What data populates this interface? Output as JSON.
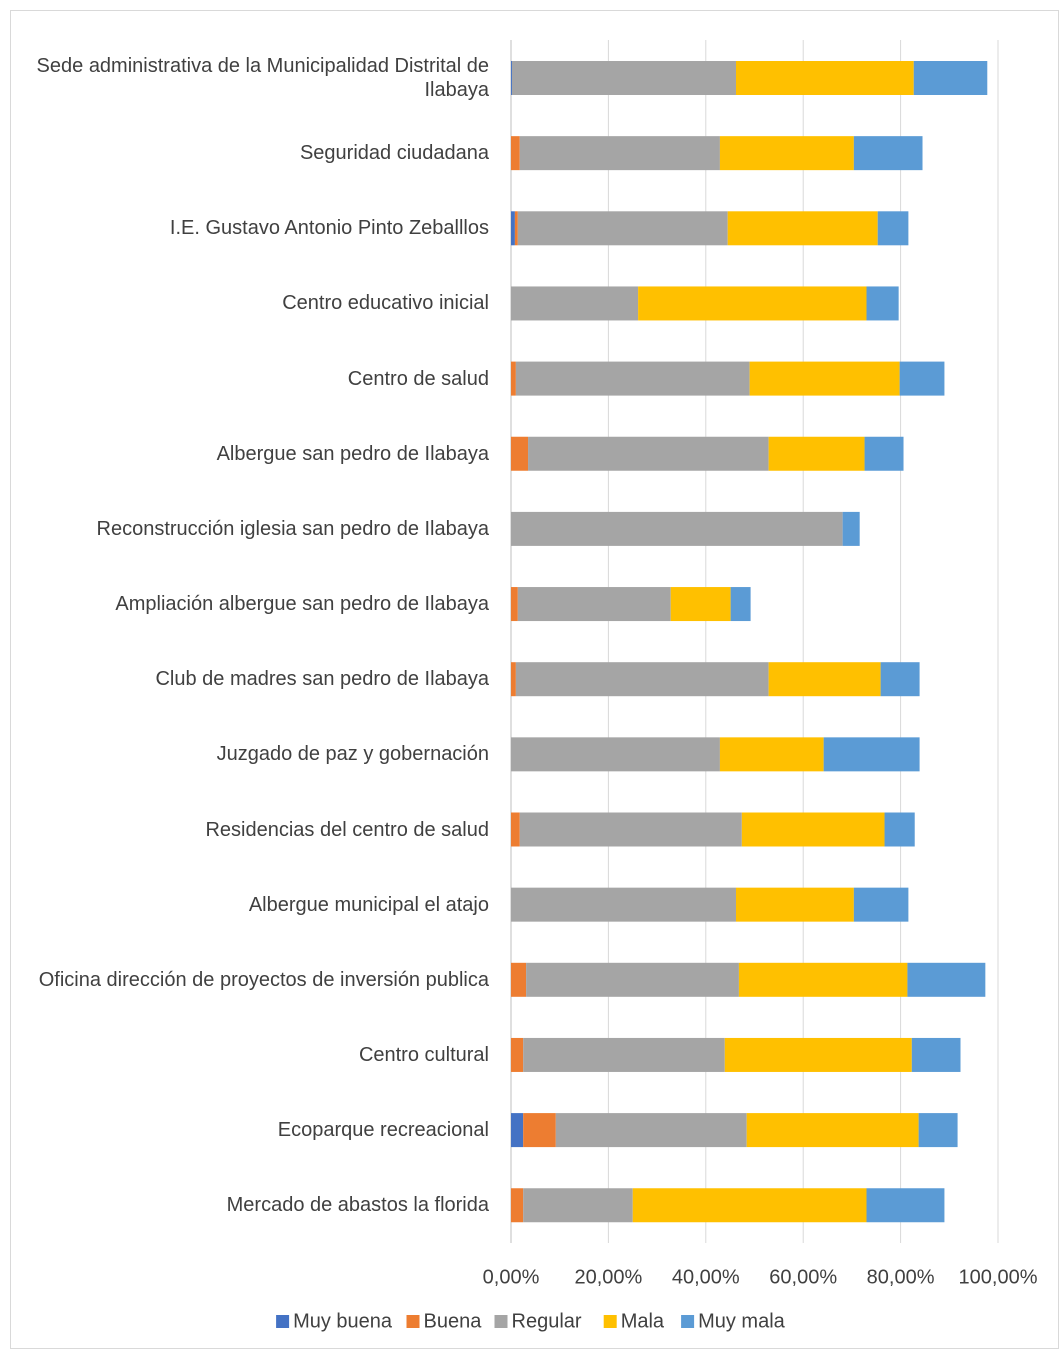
{
  "chart_data": {
    "type": "stacked-bar-horizontal",
    "categories": [
      "Sede administrativa de la Municipalidad Distrital de Ilabaya",
      "Seguridad ciudadana",
      "I.E. Gustavo Antonio Pinto Zeballlos",
      "Centro educativo inicial",
      "Centro de salud",
      "Albergue san pedro de Ilabaya",
      "Reconstrucción iglesia san pedro de Ilabaya",
      "Ampliación albergue san pedro de Ilabaya",
      "Club de madres san pedro de Ilabaya",
      "Juzgado de paz y gobernación",
      "Residencias del centro de salud",
      "Albergue municipal el atajo",
      "Oficina dirección de proyectos de inversión publica",
      "Centro cultural",
      "Ecoparque recreacional",
      "Mercado de abastos la florida"
    ],
    "series": [
      {
        "name": "Muy buena",
        "color": "#4472c4",
        "values": [
          0.2,
          0,
          0.8,
          0,
          0,
          0,
          0,
          0,
          0,
          0,
          0,
          0,
          0,
          0,
          2.5,
          0
        ]
      },
      {
        "name": "Buena",
        "color": "#ed7d31",
        "values": [
          0,
          1.8,
          0.6,
          0,
          1.0,
          3.5,
          0,
          1.4,
          1.0,
          0,
          1.8,
          0,
          3.1,
          2.5,
          6.7,
          2.5
        ]
      },
      {
        "name": "Regular",
        "color": "#a5a5a5",
        "values": [
          46,
          41.1,
          43.1,
          26.1,
          48,
          49.4,
          68.1,
          31.4,
          51.9,
          42.9,
          45.6,
          46.2,
          43.7,
          41.4,
          39.2,
          22.5
        ]
      },
      {
        "name": "Mala",
        "color": "#ffc000",
        "values": [
          36.5,
          27.5,
          30.8,
          46.9,
          30.8,
          19.7,
          0,
          12.3,
          23,
          21.3,
          29.3,
          24.2,
          34.6,
          38.4,
          35.3,
          48
        ]
      },
      {
        "name": "Muy mala",
        "color": "#5b9bd5",
        "values": [
          15.1,
          14.1,
          6.3,
          6.6,
          9.2,
          8,
          3.5,
          4.1,
          8,
          19.7,
          6.2,
          11.2,
          16,
          10,
          8,
          16
        ]
      }
    ],
    "xlim": [
      0,
      100
    ],
    "xticks": [
      {
        "value": 0,
        "label": "0,00%"
      },
      {
        "value": 20,
        "label": "20,00%"
      },
      {
        "value": 40,
        "label": "40,00%"
      },
      {
        "value": 60,
        "label": "60,00%"
      },
      {
        "value": 80,
        "label": "80,00%"
      },
      {
        "value": 100,
        "label": "100,00%"
      }
    ],
    "grid": true,
    "legend": "bottom"
  }
}
